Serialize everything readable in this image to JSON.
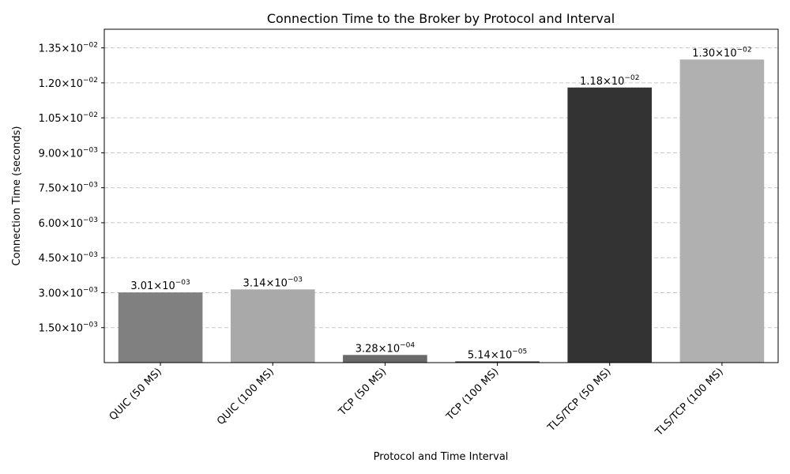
{
  "chart_data": {
    "type": "bar",
    "title": "Connection Time to the Broker by Protocol and Interval",
    "xlabel": "Protocol and Time Interval",
    "ylabel": "Connection Time (seconds)",
    "categories": [
      "QUIC (50 MS)",
      "QUIC (100 MS)",
      "TCP (50 MS)",
      "TCP (100 MS)",
      "TLS/TCP (50 MS)",
      "TLS/TCP (100 MS)"
    ],
    "values": [
      0.00301,
      0.00314,
      0.000328,
      5.14e-05,
      0.0118,
      0.013
    ],
    "data_labels": [
      {
        "mant": "3.01",
        "exp": "−03"
      },
      {
        "mant": "3.14",
        "exp": "−03"
      },
      {
        "mant": "3.28",
        "exp": "−04"
      },
      {
        "mant": "5.14",
        "exp": "−05"
      },
      {
        "mant": "1.18",
        "exp": "−02"
      },
      {
        "mant": "1.30",
        "exp": "−02"
      }
    ],
    "bar_colors": [
      "#808080",
      "#a9a9a9",
      "#696969",
      "#2f2f2f",
      "#333333",
      "#b0b0b0"
    ],
    "ylim": [
      0,
      0.0143
    ],
    "yticks": [
      0.0015,
      0.003,
      0.0045,
      0.006,
      0.0075,
      0.009,
      0.0105,
      0.012,
      0.0135
    ],
    "ytick_labels": [
      {
        "mant": "1.50",
        "exp": "−03"
      },
      {
        "mant": "3.00",
        "exp": "−03"
      },
      {
        "mant": "4.50",
        "exp": "−03"
      },
      {
        "mant": "6.00",
        "exp": "−03"
      },
      {
        "mant": "7.50",
        "exp": "−03"
      },
      {
        "mant": "9.00",
        "exp": "−03"
      },
      {
        "mant": "1.05",
        "exp": "−02"
      },
      {
        "mant": "1.20",
        "exp": "−02"
      },
      {
        "mant": "1.35",
        "exp": "−02"
      }
    ],
    "grid": "y-dashed",
    "grid_color": "#c8c8c8"
  }
}
